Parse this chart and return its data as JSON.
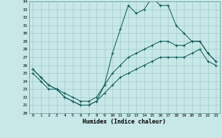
{
  "xlabel": "Humidex (Indice chaleur)",
  "xlim": [
    -0.5,
    23.5
  ],
  "ylim": [
    20,
    34
  ],
  "xticks": [
    0,
    1,
    2,
    3,
    4,
    5,
    6,
    7,
    8,
    9,
    10,
    11,
    12,
    13,
    14,
    15,
    16,
    17,
    18,
    19,
    20,
    21,
    22,
    23
  ],
  "yticks": [
    20,
    21,
    22,
    23,
    24,
    25,
    26,
    27,
    28,
    29,
    30,
    31,
    32,
    33,
    34
  ],
  "background_color": "#c8e8e8",
  "grid_color": "#a0c8c8",
  "line_color": "#1a6060",
  "hours": [
    0,
    1,
    2,
    3,
    4,
    5,
    6,
    7,
    8,
    9,
    10,
    11,
    12,
    13,
    14,
    15,
    16,
    17,
    18,
    19,
    20,
    21,
    22,
    23
  ],
  "line_max": [
    25.5,
    24.5,
    23.5,
    23.0,
    22.0,
    21.5,
    21.0,
    21.0,
    21.5,
    23.5,
    27.5,
    30.5,
    33.5,
    32.5,
    33.0,
    34.5,
    33.5,
    33.5,
    31.0,
    30.0,
    29.0,
    29.0,
    27.5,
    26.5
  ],
  "line_avg": [
    25.5,
    24.5,
    23.5,
    23.0,
    22.5,
    22.0,
    21.5,
    21.5,
    22.0,
    23.5,
    25.0,
    26.0,
    27.0,
    27.5,
    28.0,
    28.5,
    29.0,
    29.0,
    28.5,
    28.5,
    29.0,
    29.0,
    27.5,
    26.5
  ],
  "line_min": [
    25.0,
    24.0,
    23.0,
    23.0,
    22.0,
    21.5,
    21.0,
    21.0,
    21.5,
    22.5,
    23.5,
    24.5,
    25.0,
    25.5,
    26.0,
    26.5,
    27.0,
    27.0,
    27.0,
    27.0,
    27.5,
    28.0,
    26.5,
    26.0
  ]
}
